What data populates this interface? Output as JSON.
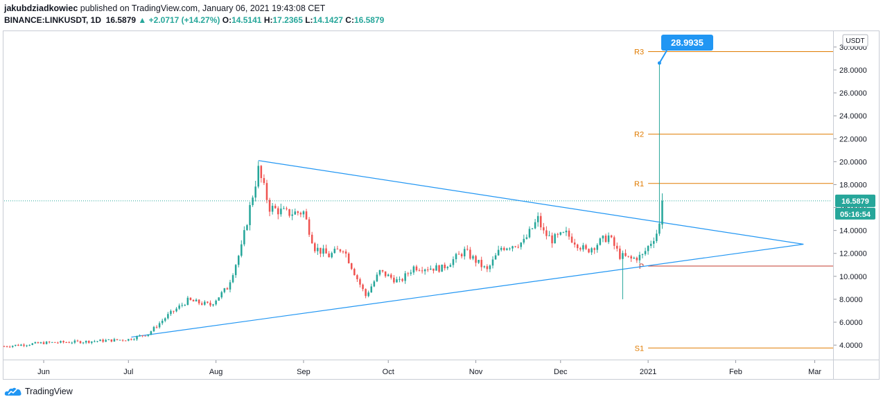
{
  "header": {
    "author": "jakubdziadkowiec",
    "published_text": "published on TradingView.com, January 06, 2021 19:43:08 CET",
    "symbol": "BINANCE:LINKUSDT, 1D",
    "last": "16.5879",
    "change": "▲ +2.0717 (+14.27%)",
    "o_label": "O:",
    "o": "14.5141",
    "h_label": "H:",
    "h": "17.2365",
    "l_label": "L:",
    "l": "14.1427",
    "c_label": "C:",
    "c": "16.5879"
  },
  "footer": {
    "brand": "TradingView"
  },
  "colors": {
    "up": "#26a69a",
    "down": "#ef5350",
    "trendline": "#2196f3",
    "pivot": "#e07b00",
    "support": "#c0392b",
    "price_tag": "#26a69a",
    "callout": "#2196f3"
  },
  "chart_data": {
    "type": "candlestick",
    "ylim": [
      2.8,
      31.2
    ],
    "yticks": [
      4,
      6,
      8,
      10,
      12,
      14,
      16,
      18,
      20,
      22,
      24,
      26,
      28,
      30
    ],
    "ytick_labels": [
      "4.0000",
      "6.0000",
      "8.0000",
      "10.0000",
      "12.0000",
      "14.0000",
      "16.0000",
      "18.0000",
      "20.0000",
      "22.0000",
      "24.0000",
      "26.0000",
      "28.0000",
      "30.0000"
    ],
    "currency": "USDT",
    "x_range": [
      "2020-05-18",
      "2021-03-07"
    ],
    "xticks": [
      {
        "date": "2020-06-01",
        "label": "Jun"
      },
      {
        "date": "2020-07-01",
        "label": "Jul"
      },
      {
        "date": "2020-08-01",
        "label": "Aug"
      },
      {
        "date": "2020-09-01",
        "label": "Sep"
      },
      {
        "date": "2020-10-01",
        "label": "Oct"
      },
      {
        "date": "2020-11-01",
        "label": "Nov"
      },
      {
        "date": "2020-12-01",
        "label": "Dec"
      },
      {
        "date": "2021-01-01",
        "label": "2021"
      },
      {
        "date": "2021-02-01",
        "label": "Feb"
      },
      {
        "date": "2021-03-01",
        "label": "Mar"
      }
    ],
    "close_anchors": [
      [
        "2020-05-18",
        3.9
      ],
      [
        "2020-06-01",
        4.2
      ],
      [
        "2020-06-15",
        4.3
      ],
      [
        "2020-07-01",
        4.5
      ],
      [
        "2020-07-08",
        5.0
      ],
      [
        "2020-07-15",
        6.6
      ],
      [
        "2020-07-22",
        7.9
      ],
      [
        "2020-07-30",
        7.5
      ],
      [
        "2020-08-05",
        9.0
      ],
      [
        "2020-08-10",
        12.5
      ],
      [
        "2020-08-13",
        16.0
      ],
      [
        "2020-08-16",
        19.3
      ],
      [
        "2020-08-20",
        16.0
      ],
      [
        "2020-08-26",
        15.5
      ],
      [
        "2020-09-01",
        15.6
      ],
      [
        "2020-09-05",
        12.5
      ],
      [
        "2020-09-10",
        11.8
      ],
      [
        "2020-09-15",
        12.5
      ],
      [
        "2020-09-20",
        9.8
      ],
      [
        "2020-09-23",
        8.3
      ],
      [
        "2020-09-28",
        10.4
      ],
      [
        "2020-10-05",
        9.5
      ],
      [
        "2020-10-10",
        10.8
      ],
      [
        "2020-10-20",
        10.7
      ],
      [
        "2020-10-28",
        12.2
      ],
      [
        "2020-11-05",
        10.5
      ],
      [
        "2020-11-10",
        12.5
      ],
      [
        "2020-11-18",
        13.0
      ],
      [
        "2020-11-23",
        15.0
      ],
      [
        "2020-11-25",
        13.8
      ],
      [
        "2020-11-28",
        13.2
      ],
      [
        "2020-12-03",
        13.7
      ],
      [
        "2020-12-10",
        12.2
      ],
      [
        "2020-12-18",
        13.5
      ],
      [
        "2020-12-22",
        11.8
      ],
      [
        "2020-12-26",
        11.5
      ],
      [
        "2020-12-30",
        11.8
      ],
      [
        "2021-01-02",
        13.0
      ],
      [
        "2021-01-04",
        13.8
      ],
      [
        "2021-01-05",
        14.5
      ],
      [
        "2021-01-06",
        16.5879
      ]
    ],
    "last_candle": {
      "date": "2021-01-06",
      "open": 14.5141,
      "high": 17.2365,
      "low": 14.1427,
      "close": 16.5879
    },
    "wicks": [
      {
        "date": "2021-01-05",
        "high": 28.6
      },
      {
        "date": "2020-12-23",
        "low": 8.0
      }
    ],
    "trendlines": [
      {
        "from": [
          "2020-08-16",
          20.1
        ],
        "to": [
          "2021-02-25",
          12.8
        ]
      },
      {
        "from": [
          "2020-07-02",
          4.7
        ],
        "to": [
          "2021-02-25",
          12.8
        ]
      }
    ],
    "horizontal_levels": [
      {
        "label": "R3",
        "value": 29.6
      },
      {
        "label": "R2",
        "value": 22.4
      },
      {
        "label": "R1",
        "value": 18.1
      },
      {
        "label": "P",
        "value": 10.9
      },
      {
        "label": "S1",
        "value": 3.75
      }
    ],
    "last_price": {
      "value": 16.5879,
      "label": "16.5879",
      "countdown": "05:16:54"
    },
    "callout": {
      "label": "28.9935",
      "value": 28.9935
    }
  }
}
